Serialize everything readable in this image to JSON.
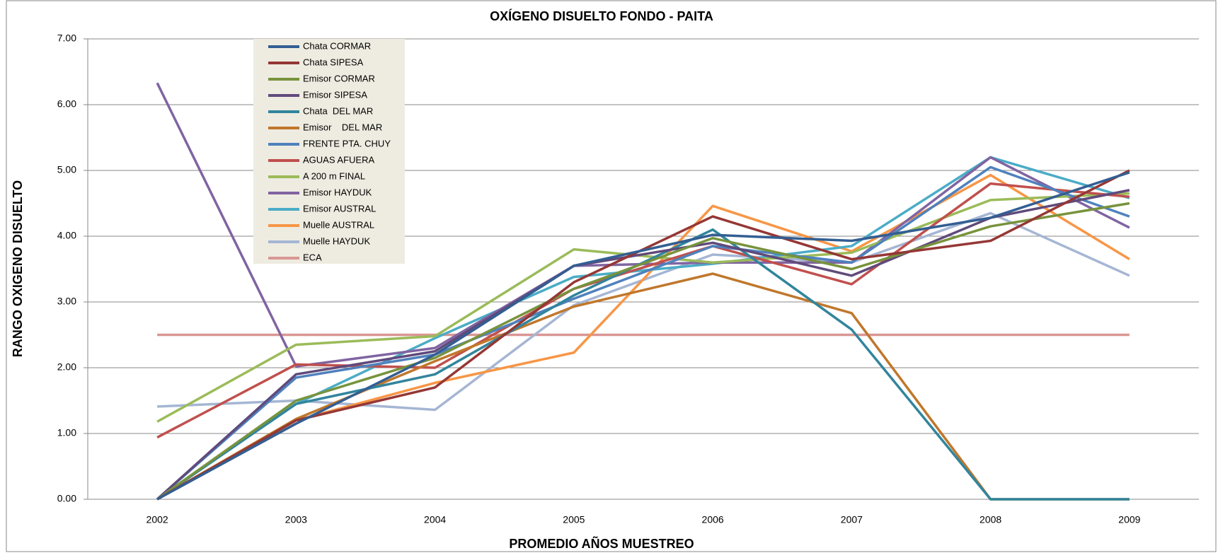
{
  "chart_data": {
    "type": "line",
    "title": "OXÍGENO DISUELTO FONDO - PAITA",
    "x_label": "PROMEDIO AÑOS MUESTREO",
    "y_label": "RANGO OXIGENO DISUELTO",
    "categories": [
      "2002",
      "2003",
      "2004",
      "2005",
      "2006",
      "2007",
      "2008",
      "2009"
    ],
    "ylim": [
      0,
      7
    ],
    "yticks": [
      {
        "value": 0,
        "label": "0.00"
      },
      {
        "value": 1,
        "label": "1.00"
      },
      {
        "value": 2,
        "label": "2.00"
      },
      {
        "value": 3,
        "label": "3.00"
      },
      {
        "value": 4,
        "label": "4.00"
      },
      {
        "value": 5,
        "label": "5.00"
      },
      {
        "value": 6,
        "label": "6.00"
      },
      {
        "value": 7,
        "label": "7.00"
      }
    ],
    "grid": true,
    "legend": "top-left",
    "series": [
      {
        "name": "Chata CORMAR",
        "color": "#335e92",
        "values": [
          0,
          1.15,
          2.2,
          3.55,
          4.02,
          3.93,
          4.28,
          4.97
        ]
      },
      {
        "name": "Chata SIPESA",
        "color": "#953735",
        "values": [
          0,
          1.2,
          1.7,
          3.3,
          4.3,
          3.65,
          3.93,
          5.0
        ]
      },
      {
        "name": "Emisor CORMAR",
        "color": "#77933c",
        "values": [
          0,
          1.5,
          2.15,
          3.2,
          3.97,
          3.5,
          4.15,
          4.5
        ]
      },
      {
        "name": "Emisor SIPESA",
        "color": "#604a7b",
        "values": [
          0,
          1.9,
          2.25,
          3.55,
          3.9,
          3.4,
          4.28,
          4.7
        ]
      },
      {
        "name": "Chata  DEL MAR",
        "color": "#31859c",
        "values": [
          0,
          1.45,
          1.9,
          3.1,
          4.1,
          2.58,
          0,
          0
        ]
      },
      {
        "name": "Emisor    DEL MAR",
        "color": "#c0772c",
        "values": [
          0,
          1.22,
          2.1,
          2.93,
          3.43,
          2.83,
          0,
          0
        ]
      },
      {
        "name": "FRENTE PTA. CHUY",
        "color": "#4f81bd",
        "values": [
          0,
          1.85,
          2.2,
          3.05,
          3.85,
          3.6,
          5.05,
          4.3
        ]
      },
      {
        "name": "AGUAS AFUERA",
        "color": "#c0504d",
        "values": [
          0.94,
          2.05,
          2.0,
          3.2,
          3.85,
          3.27,
          4.8,
          4.6
        ]
      },
      {
        "name": "A 200 m FINAL",
        "color": "#9bbb59",
        "values": [
          1.18,
          2.35,
          2.48,
          3.8,
          3.6,
          3.75,
          4.55,
          4.65
        ]
      },
      {
        "name": "Emisor HAYDUK",
        "color": "#8064a2",
        "values": [
          6.33,
          2.02,
          2.3,
          3.55,
          3.6,
          3.6,
          5.2,
          4.13
        ]
      },
      {
        "name": "Emisor AUSTRAL",
        "color": "#4bacc6",
        "values": [
          0,
          1.45,
          2.45,
          3.38,
          3.58,
          3.85,
          5.2,
          4.58
        ]
      },
      {
        "name": "Muelle AUSTRAL",
        "color": "#f79646",
        "values": [
          0,
          1.2,
          1.77,
          2.23,
          4.46,
          3.77,
          4.93,
          3.65
        ]
      },
      {
        "name": "Muelle HAYDUK",
        "color": "#a5b6d4",
        "values": [
          1.41,
          1.5,
          1.36,
          2.95,
          3.72,
          3.6,
          4.35,
          3.4
        ]
      },
      {
        "name": "ECA",
        "color": "#d99694",
        "values": [
          2.5,
          2.5,
          2.5,
          2.5,
          2.5,
          2.5,
          2.5,
          2.5
        ]
      }
    ]
  }
}
